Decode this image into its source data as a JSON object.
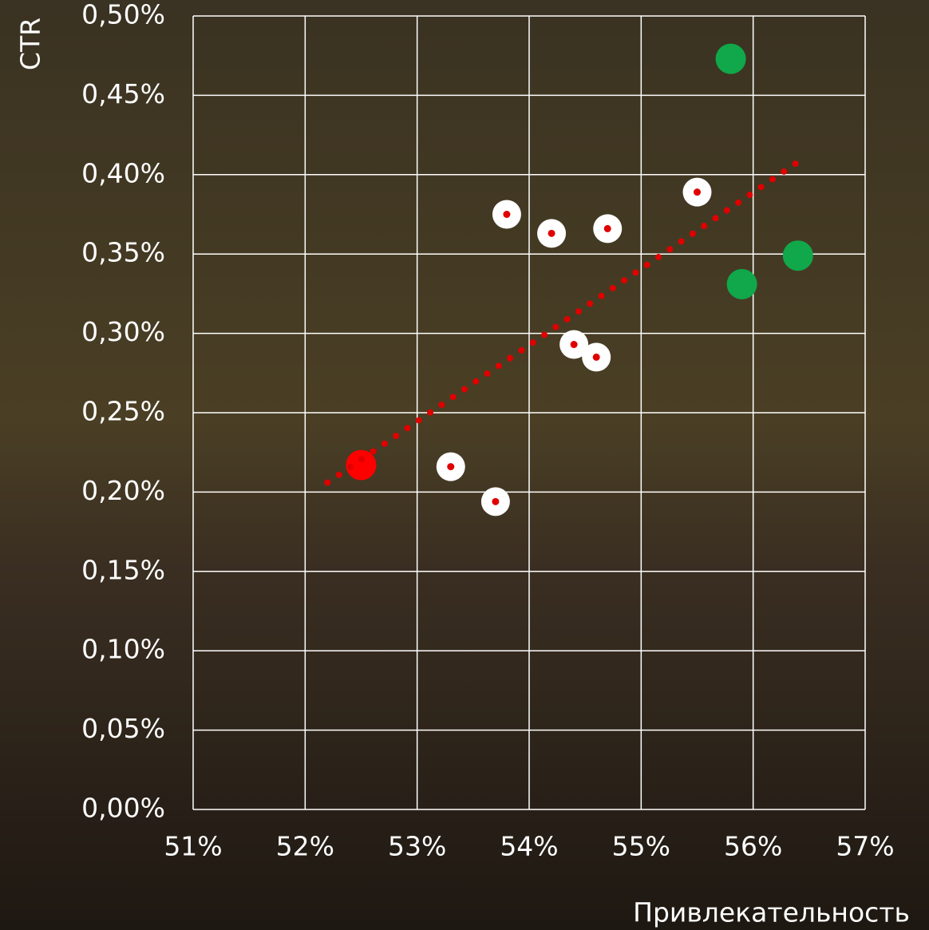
{
  "chart_data": {
    "type": "scatter",
    "x_label": "Привлекательность",
    "y_label": "CTR",
    "xlim": [
      51,
      57
    ],
    "xticks": [
      {
        "value": 51,
        "label": "51%"
      },
      {
        "value": 52,
        "label": "52%"
      },
      {
        "value": 53,
        "label": "53%"
      },
      {
        "value": 54,
        "label": "54%"
      },
      {
        "value": 55,
        "label": "55%"
      },
      {
        "value": 56,
        "label": "56%"
      },
      {
        "value": 57,
        "label": "57%"
      }
    ],
    "ylim": [
      0,
      0.5
    ],
    "yticks": [
      {
        "value": 0,
        "label": "0,00%"
      },
      {
        "value": 0.05,
        "label": "0,05%"
      },
      {
        "value": 0.1,
        "label": "0,10%"
      },
      {
        "value": 0.15,
        "label": "0,15%"
      },
      {
        "value": 0.2,
        "label": "0,20%"
      },
      {
        "value": 0.25,
        "label": "0,25%"
      },
      {
        "value": 0.3,
        "label": "0,30%"
      },
      {
        "value": 0.35,
        "label": "0,35%"
      },
      {
        "value": 0.4,
        "label": "0,40%"
      },
      {
        "value": 0.45,
        "label": "0,45%"
      },
      {
        "value": 0.5,
        "label": "0,50%"
      }
    ],
    "grid": true,
    "series": [
      {
        "color": "#ffffff",
        "center_color": "#e00000",
        "x": [
          53.8,
          54.2,
          54.7,
          55.5,
          54.4,
          54.6,
          53.3,
          53.7
        ],
        "values": [
          0.375,
          0.363,
          0.366,
          0.389,
          0.293,
          0.285,
          0.216,
          0.194
        ]
      },
      {
        "color": "#10a84a",
        "x": [
          55.8,
          55.9,
          56.4
        ],
        "values": [
          0.473,
          0.331,
          0.349
        ]
      },
      {
        "color": "#ff0000",
        "x": [
          52.5
        ],
        "values": [
          0.217
        ]
      }
    ],
    "trendline": {
      "color": "#e00000",
      "x": [
        52.2,
        56.4
      ],
      "values": [
        0.206,
        0.408
      ]
    }
  }
}
